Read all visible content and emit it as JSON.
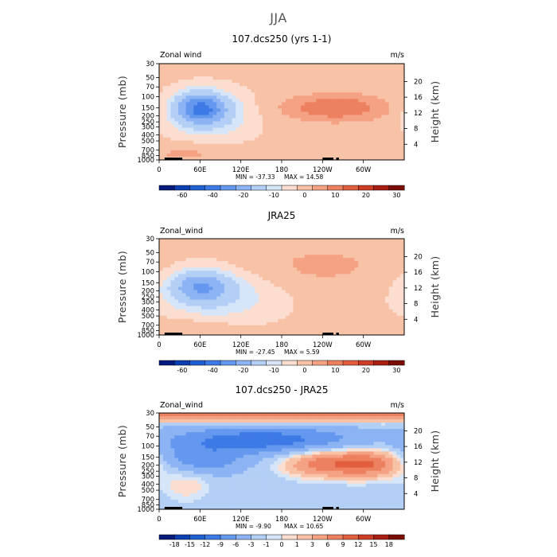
{
  "figure": {
    "title": "JJA"
  },
  "chart_data": [
    {
      "type": "heatmap",
      "title": "107.dcs250 (yrs 1-1)",
      "variable": "Zonal wind",
      "units": "m/s",
      "xlabel": "",
      "ylabel": "Pressure (mb)",
      "y2label": "Height (km)",
      "xticks": [
        "0",
        "60E",
        "120E",
        "180",
        "120W",
        "60W"
      ],
      "xtick_lon": [
        0,
        60,
        120,
        180,
        240,
        300
      ],
      "xlim": [
        0,
        360
      ],
      "yticks": [
        "30",
        "50",
        "70",
        "100",
        "150",
        "200",
        "250",
        "300",
        "400",
        "500",
        "700",
        "850",
        "1000"
      ],
      "ytick_p": [
        30,
        50,
        70,
        100,
        150,
        200,
        250,
        300,
        400,
        500,
        700,
        850,
        1000
      ],
      "ylim_p": [
        1000,
        30
      ],
      "y2ticks": [
        "20",
        "16",
        "12",
        "8",
        "4"
      ],
      "y2tick_km": [
        20,
        16,
        12,
        8,
        4
      ],
      "min_label": "MIN = -37.33",
      "max_label": "MAX = 14.58",
      "min": -37.33,
      "max": 14.58,
      "colorbar_levels": [
        "-60",
        "-40",
        "-20",
        "-10",
        "0",
        "10",
        "20",
        "30"
      ],
      "features": [
        {
          "lon": 60,
          "p": 150,
          "value": -37,
          "sx": 26,
          "sy": 0.38
        },
        {
          "lon": 75,
          "p": 200,
          "value": -12,
          "sx": 40,
          "sy": 0.55
        },
        {
          "lon": 260,
          "p": 150,
          "value": 14,
          "sx": 55,
          "sy": 0.35
        },
        {
          "lon": 40,
          "p": 800,
          "value": 5,
          "sx": 45,
          "sy": 0.25
        }
      ],
      "background": 1,
      "palette": [
        "#061b7c",
        "#0c3fb0",
        "#1f5fd2",
        "#3d7ae6",
        "#6497ee",
        "#8cb3f3",
        "#b3cff6",
        "#d6e5f7",
        "#fbded0",
        "#f8c2a7",
        "#f4a283",
        "#ec805f",
        "#e15e3f",
        "#cd3c24",
        "#a71e12",
        "#7a0c06"
      ],
      "palette_bounds": [
        -70,
        -60,
        -50,
        -40,
        -30,
        -20,
        -10,
        -5,
        0,
        5,
        10,
        15,
        20,
        25,
        30
      ]
    },
    {
      "type": "heatmap",
      "title": "JRA25",
      "variable": "Zonal_wind",
      "units": "m/s",
      "xlabel": "",
      "ylabel": "Pressure (mb)",
      "y2label": "Height (km)",
      "xticks": [
        "0",
        "60E",
        "120E",
        "180",
        "120W",
        "60W"
      ],
      "xtick_lon": [
        0,
        60,
        120,
        180,
        240,
        300
      ],
      "xlim": [
        0,
        360
      ],
      "yticks": [
        "30",
        "50",
        "70",
        "100",
        "150",
        "200",
        "250",
        "300",
        "400",
        "500",
        "700",
        "850",
        "1000"
      ],
      "ytick_p": [
        30,
        50,
        70,
        100,
        150,
        200,
        250,
        300,
        400,
        500,
        700,
        850,
        1000
      ],
      "ylim_p": [
        1000,
        30
      ],
      "y2ticks": [
        "20",
        "16",
        "12",
        "8",
        "4"
      ],
      "y2tick_km": [
        20,
        16,
        12,
        8,
        4
      ],
      "min_label": "MIN = -27.45",
      "max_label": "MAX = 5.59",
      "min": -27.45,
      "max": 5.59,
      "colorbar_levels": [
        "-60",
        "-40",
        "-20",
        "-10",
        "0",
        "10",
        "20",
        "30"
      ],
      "features": [
        {
          "lon": 60,
          "p": 170,
          "value": -27,
          "sx": 30,
          "sy": 0.4
        },
        {
          "lon": 90,
          "p": 250,
          "value": -10,
          "sx": 55,
          "sy": 0.6
        },
        {
          "lon": 240,
          "p": 80,
          "value": 5,
          "sx": 80,
          "sy": 0.6
        },
        {
          "lon": 40,
          "p": 750,
          "value": 4,
          "sx": 50,
          "sy": 0.2
        }
      ],
      "background": 1,
      "palette": [
        "#061b7c",
        "#0c3fb0",
        "#1f5fd2",
        "#3d7ae6",
        "#6497ee",
        "#8cb3f3",
        "#b3cff6",
        "#d6e5f7",
        "#fbded0",
        "#f8c2a7",
        "#f4a283",
        "#ec805f",
        "#e15e3f",
        "#cd3c24",
        "#a71e12",
        "#7a0c06"
      ],
      "palette_bounds": [
        -70,
        -60,
        -50,
        -40,
        -30,
        -20,
        -10,
        -5,
        0,
        5,
        10,
        15,
        20,
        25,
        30
      ]
    },
    {
      "type": "heatmap",
      "title": "107.dcs250 - JRA25",
      "variable": "Zonal_wind",
      "units": "m/s",
      "xlabel": "",
      "ylabel": "Pressure (mb)",
      "y2label": "Height (km)",
      "xticks": [
        "0",
        "60E",
        "120E",
        "180",
        "120W",
        "60W"
      ],
      "xtick_lon": [
        0,
        60,
        120,
        180,
        240,
        300
      ],
      "xlim": [
        0,
        360
      ],
      "yticks": [
        "30",
        "50",
        "70",
        "100",
        "150",
        "200",
        "250",
        "300",
        "400",
        "500",
        "700",
        "850",
        "1000"
      ],
      "ytick_p": [
        30,
        50,
        70,
        100,
        150,
        200,
        250,
        300,
        400,
        500,
        700,
        850,
        1000
      ],
      "ylim_p": [
        1000,
        30
      ],
      "y2ticks": [
        "20",
        "16",
        "12",
        "8",
        "4"
      ],
      "y2tick_km": [
        20,
        16,
        12,
        8,
        4
      ],
      "min_label": "MIN = -9.90",
      "max_label": "MAX = 10.65",
      "min": -9.9,
      "max": 10.65,
      "colorbar_levels": [
        "-18",
        "-15",
        "-12",
        "-9",
        "-6",
        "-3",
        "-1",
        "0",
        "1",
        "3",
        "6",
        "9",
        "12",
        "15",
        "18"
      ],
      "features": [
        {
          "lon": 150,
          "p": 80,
          "value": -9,
          "sx": 100,
          "sy": 0.35
        },
        {
          "lon": 60,
          "p": 170,
          "value": -6,
          "sx": 45,
          "sy": 0.35
        },
        {
          "lon": 240,
          "p": 190,
          "value": 9,
          "sx": 40,
          "sy": 0.35
        },
        {
          "lon": 310,
          "p": 190,
          "value": 10,
          "sx": 35,
          "sy": 0.35
        },
        {
          "lon": 180,
          "p": 32,
          "value": 10,
          "sx": 400,
          "sy": 0.18
        },
        {
          "lon": 40,
          "p": 400,
          "value": 3,
          "sx": 25,
          "sy": 0.45
        }
      ],
      "background": -2,
      "palette": [
        "#061b7c",
        "#0c3fb0",
        "#1f5fd2",
        "#3d7ae6",
        "#6497ee",
        "#8cb3f3",
        "#b3cff6",
        "#d6e5f7",
        "#fbded0",
        "#f8c2a7",
        "#f4a283",
        "#ec805f",
        "#e15e3f",
        "#cd3c24",
        "#a71e12",
        "#7a0c06"
      ],
      "palette_bounds": [
        -18,
        -15,
        -12,
        -9,
        -6,
        -3,
        -1,
        0,
        1,
        3,
        6,
        9,
        12,
        15,
        18
      ]
    }
  ]
}
